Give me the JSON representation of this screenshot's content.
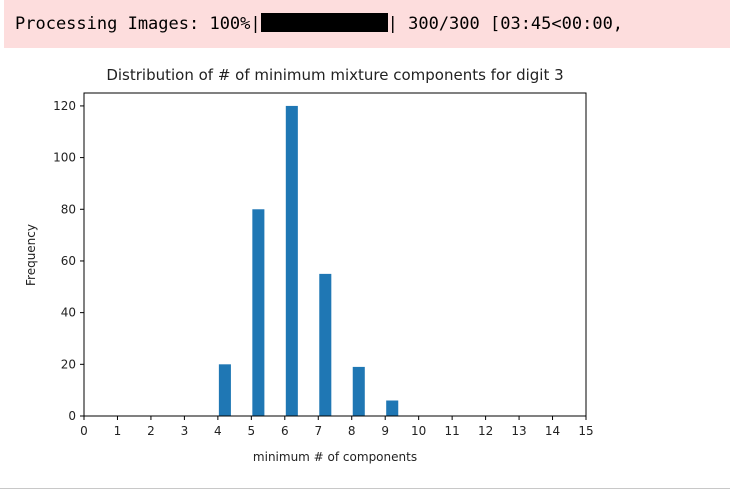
{
  "output": {
    "progress": {
      "label": "Processing Images: 100%|",
      "fill_fraction": 1.0,
      "after_bar": "| 300/300 [03:45<00:00,"
    }
  },
  "chart_data": {
    "type": "bar",
    "title": "Distribution of # of minimum mixture components for digit 3",
    "xlabel": "minimum # of components",
    "ylabel": "Frequency",
    "xlim": [
      0,
      15
    ],
    "ylim": [
      0,
      125
    ],
    "xticks": [
      "0",
      "1",
      "2",
      "3",
      "4",
      "5",
      "6",
      "7",
      "8",
      "9",
      "10",
      "11",
      "12",
      "13",
      "14",
      "15"
    ],
    "yticks": [
      "0",
      "20",
      "40",
      "60",
      "80",
      "100",
      "120"
    ],
    "x": [
      4,
      5,
      6,
      7,
      8,
      9
    ],
    "values": [
      20,
      80,
      120,
      55,
      19,
      6
    ],
    "bar_color": "#1f77b4",
    "grid": false,
    "legend": "none"
  }
}
